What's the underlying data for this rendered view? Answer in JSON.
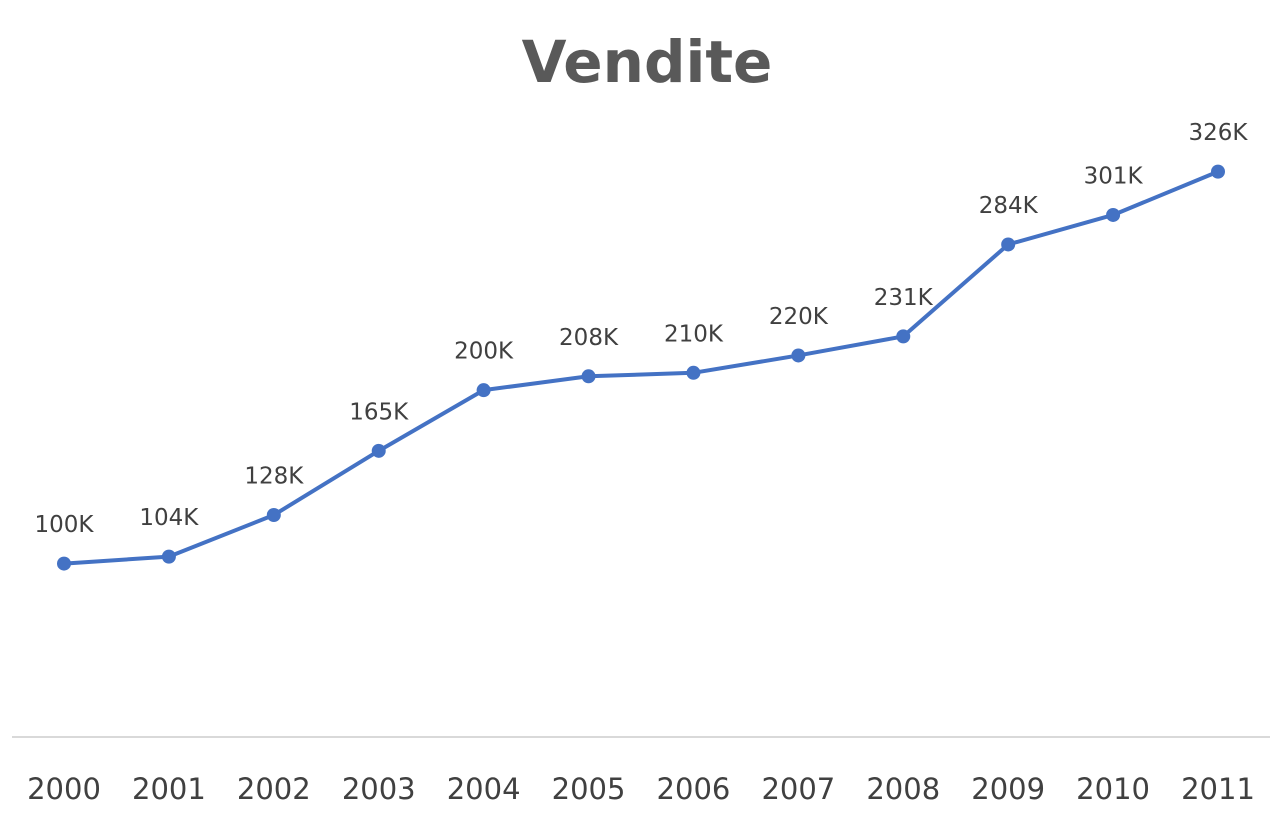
{
  "chart_data": {
    "type": "line",
    "title": "Vendite",
    "categories": [
      "2000",
      "2001",
      "2002",
      "2003",
      "2004",
      "2005",
      "2006",
      "2007",
      "2008",
      "2009",
      "2010",
      "2011"
    ],
    "values": [
      100000,
      104000,
      128000,
      165000,
      200000,
      208000,
      210000,
      220000,
      231000,
      284000,
      301000,
      326000
    ],
    "value_labels": [
      "100K",
      "104K",
      "128K",
      "165K",
      "200K",
      "208K",
      "210K",
      "220K",
      "231K",
      "284K",
      "301K",
      "326K"
    ],
    "color": "#4472c4",
    "ylim": [
      0,
      350000
    ]
  }
}
